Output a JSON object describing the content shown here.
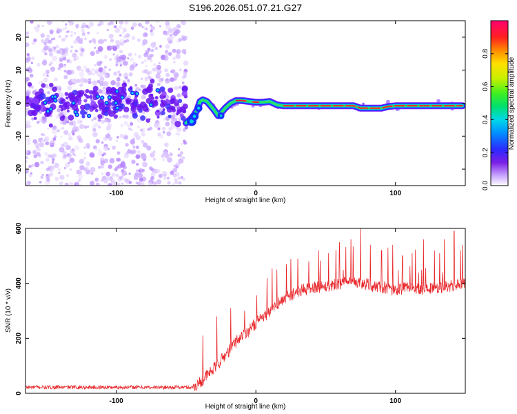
{
  "title": "S196.2026.051.07.21.G27",
  "chart_data": [
    {
      "type": "heatmap",
      "name": "spectrogram",
      "xlabel": "Height of straight line (km)",
      "ylabel": "Frequency (Hz)",
      "xlim": [
        -165,
        150
      ],
      "ylim": [
        -25,
        25
      ],
      "xticks": [
        -100,
        0,
        100
      ],
      "yticks": [
        -20,
        -10,
        0,
        10,
        20
      ],
      "colorbar": {
        "label": "Normalized spectral amplitude",
        "range": [
          0,
          1
        ],
        "ticks": [
          0.0,
          0.2,
          0.4,
          0.6,
          0.8
        ]
      },
      "ridge": {
        "description": "strong narrow signal near 0 Hz",
        "x": [
          -50,
          -47,
          -44,
          -42,
          -40,
          -38,
          -35,
          -32,
          -30,
          -27,
          -25,
          -22,
          -18,
          -14,
          -10,
          -5,
          0,
          5,
          10,
          15,
          20,
          40,
          60,
          70,
          75,
          80,
          90,
          95,
          100,
          110,
          120,
          130,
          140,
          148
        ],
        "y": [
          -6.0,
          -5.0,
          -3.5,
          -2.0,
          0.5,
          1.0,
          0.5,
          -1.0,
          -2.0,
          -3.8,
          -3.0,
          -1.5,
          0.0,
          0.8,
          0.8,
          0.5,
          0.3,
          0.3,
          0.5,
          -0.5,
          -0.8,
          -0.8,
          -0.8,
          -0.8,
          -1.5,
          -1.5,
          -1.5,
          -1.0,
          -0.8,
          -0.8,
          -0.8,
          -0.8,
          -0.8,
          -0.8
        ]
      },
      "noise_region_x": [
        -165,
        -50
      ]
    },
    {
      "type": "line",
      "name": "snr",
      "xlabel": "Height of straight line (km)",
      "ylabel": "SNR (10 * v/v)",
      "xlim": [
        -165,
        150
      ],
      "ylim": [
        0,
        600
      ],
      "xticks": [
        -100,
        0,
        100
      ],
      "yticks": [
        0,
        200,
        400,
        600
      ],
      "color": "#e8262a",
      "envelope": {
        "x": [
          -165,
          -100,
          -45,
          -40,
          -35,
          -30,
          -25,
          -20,
          -15,
          -10,
          -5,
          0,
          5,
          10,
          15,
          20,
          30,
          40,
          50,
          60,
          70,
          80,
          90,
          100,
          110,
          120,
          130,
          140,
          150
        ],
        "y": [
          22,
          22,
          22,
          40,
          65,
          90,
          120,
          150,
          185,
          210,
          230,
          255,
          275,
          300,
          320,
          345,
          370,
          385,
          390,
          400,
          405,
          395,
          385,
          375,
          385,
          380,
          385,
          390,
          400
        ]
      },
      "spikes": {
        "x": [
          -38,
          -28,
          -18,
          -8,
          8,
          15,
          22,
          30,
          38,
          45,
          52,
          60,
          68,
          75,
          82,
          90,
          98,
          105,
          112,
          120,
          128,
          135,
          142,
          148
        ],
        "y": [
          210,
          280,
          310,
          300,
          420,
          450,
          470,
          490,
          480,
          520,
          510,
          550,
          560,
          600,
          540,
          520,
          540,
          500,
          510,
          560,
          520,
          560,
          590,
          540
        ]
      }
    }
  ]
}
